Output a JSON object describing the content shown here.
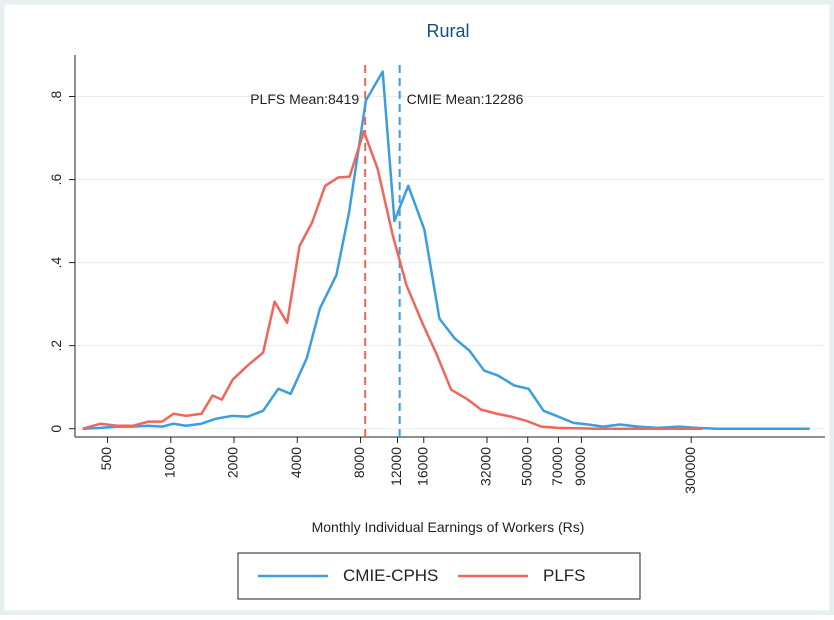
{
  "chart_data": {
    "type": "line",
    "title": "Rural",
    "x_label": "Monthly Individual Earnings of Workers (Rs)",
    "x_scale": "log",
    "grid": true,
    "legend": "bottom",
    "xlim": [
      350,
      1300000
    ],
    "ylim": [
      -0.02,
      0.9
    ],
    "xticks": [
      500,
      1000,
      2000,
      4000,
      8000,
      12000,
      16000,
      32000,
      50000,
      70000,
      90000,
      300000
    ],
    "yticks": [
      0,
      {
        "value": 0.2,
        "label": ".2"
      },
      {
        "value": 0.4,
        "label": ".4"
      },
      {
        "value": 0.6,
        "label": ".6"
      },
      {
        "value": 0.8,
        "label": ".8"
      }
    ],
    "series": [
      {
        "name": "CMIE-CPHS",
        "color": "#3a9ee0",
        "x": [
          381,
          463,
          557,
          660,
          782,
          910,
          1030,
          1180,
          1400,
          1640,
          1960,
          2320,
          2750,
          3250,
          3720,
          4440,
          5130,
          6140,
          7050,
          8480,
          10200,
          11600,
          13500,
          16100,
          19000,
          22500,
          26400,
          31000,
          36100,
          43200,
          50500,
          59500,
          70000,
          82600,
          97000,
          114000,
          138000,
          168000,
          208000,
          262000,
          320000,
          400000,
          622000,
          1100000
        ],
        "values": [
          0,
          0.002,
          0.005,
          0.005,
          0.007,
          0.005,
          0.012,
          0.007,
          0.012,
          0.024,
          0.031,
          0.029,
          0.043,
          0.096,
          0.084,
          0.17,
          0.29,
          0.37,
          0.52,
          0.79,
          0.86,
          0.5,
          0.585,
          0.48,
          0.265,
          0.217,
          0.188,
          0.14,
          0.128,
          0.104,
          0.096,
          0.043,
          0.029,
          0.014,
          0.01,
          0.005,
          0.01,
          0.005,
          0.002,
          0.005,
          0.002,
          0,
          0,
          0
        ]
      },
      {
        "name": "PLFS",
        "color": "#f0665a",
        "x": [
          381,
          463,
          557,
          660,
          782,
          910,
          1030,
          1180,
          1400,
          1580,
          1750,
          1970,
          2320,
          2750,
          3120,
          3580,
          4100,
          4700,
          5430,
          6270,
          7100,
          8300,
          9650,
          11400,
          13250,
          15900,
          18400,
          21600,
          25600,
          30000,
          35600,
          41800,
          49200,
          58000,
          70000,
          108000,
          188000,
          340000
        ],
        "values": [
          0,
          0.012,
          0.007,
          0.007,
          0.017,
          0.017,
          0.036,
          0.031,
          0.036,
          0.08,
          0.07,
          0.118,
          0.152,
          0.183,
          0.306,
          0.255,
          0.44,
          0.496,
          0.585,
          0.605,
          0.607,
          0.716,
          0.626,
          0.465,
          0.345,
          0.25,
          0.18,
          0.094,
          0.072,
          0.046,
          0.036,
          0.029,
          0.019,
          0.005,
          0.002,
          0,
          0,
          0
        ]
      }
    ],
    "annotations": [
      {
        "text": "PLFS Mean:8419",
        "x": 8419,
        "color": "#f0665a"
      },
      {
        "text": "CMIE Mean:12286",
        "x": 12286,
        "color": "#3a9ee0"
      }
    ]
  }
}
